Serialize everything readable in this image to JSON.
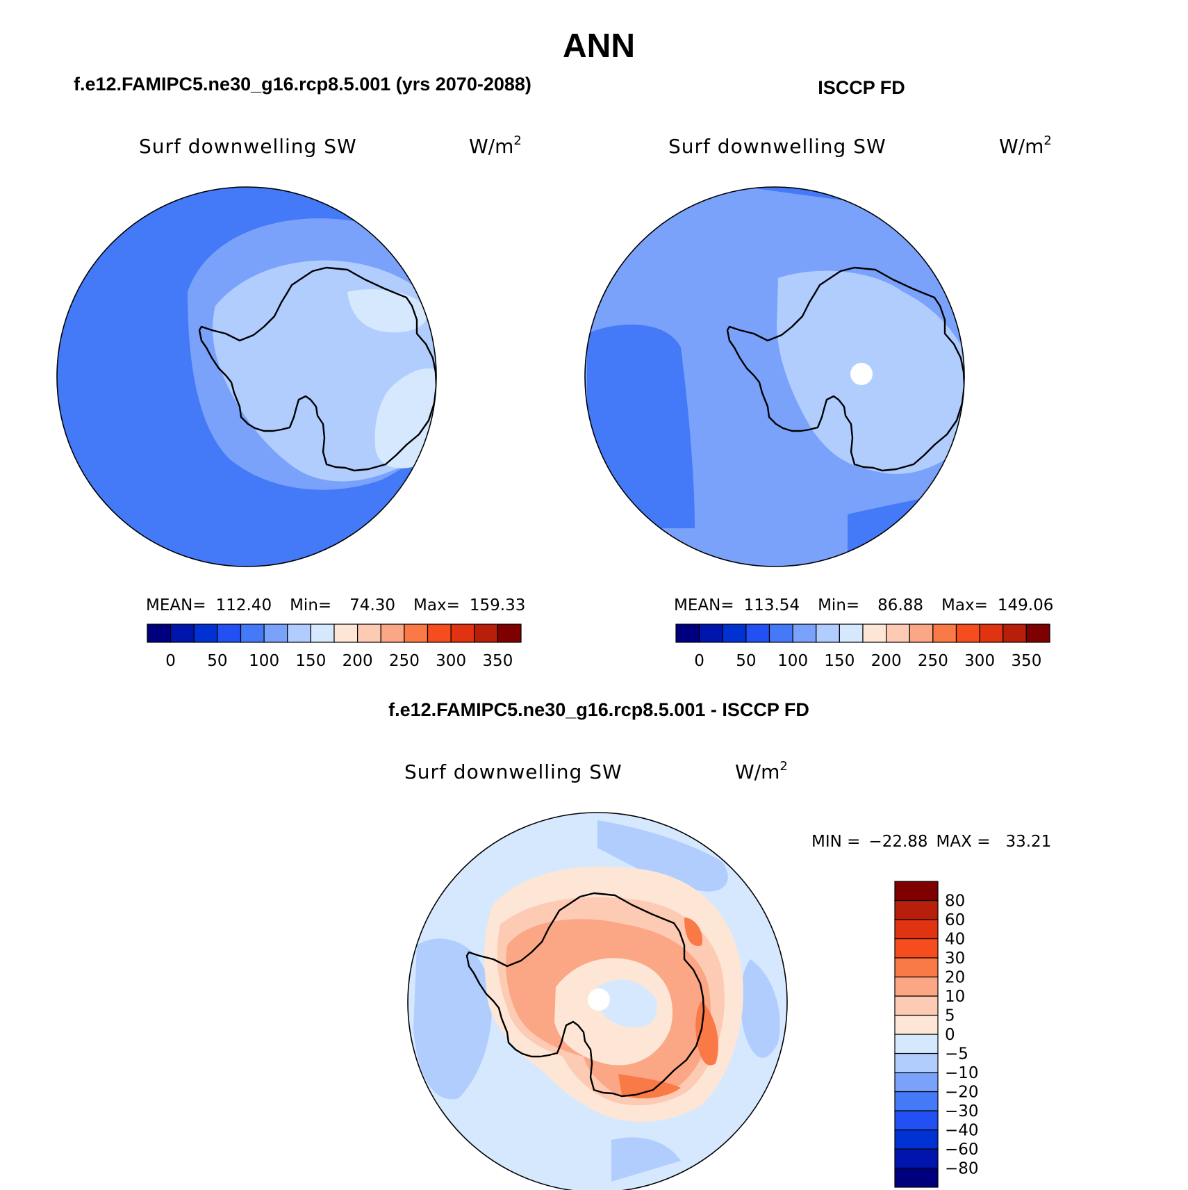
{
  "season": "ANN",
  "panels": [
    {
      "id": "model",
      "header": "f.e12.FAMIPC5.ne30_g16.rcp8.5.001 (yrs 2070-2088)",
      "variable": "Surf downwelling SW",
      "units_base": "W/m",
      "units_exp": "2",
      "stats": {
        "mean_label": "MEAN=",
        "mean": "112.40",
        "min_label": "Min=",
        "min": "74.30",
        "max_label": "Max=",
        "max": "159.33"
      }
    },
    {
      "id": "obs",
      "header": "ISCCP FD",
      "variable": "Surf downwelling SW",
      "units_base": "W/m",
      "units_exp": "2",
      "stats": {
        "mean_label": "MEAN=",
        "mean": "113.54",
        "min_label": "Min=",
        "min": "86.88",
        "max_label": "Max=",
        "max": "149.06"
      }
    },
    {
      "id": "diff",
      "header": "f.e12.FAMIPC5.ne30_g16.rcp8.5.001 - ISCCP FD",
      "variable": "Surf downwelling SW",
      "units_base": "W/m",
      "units_exp": "2",
      "stats": {
        "min_label": "MIN =",
        "min": "−22.88",
        "max_label": "MAX =",
        "max": "33.21"
      }
    }
  ],
  "colorbar_abs": {
    "colors": [
      "#00007f",
      "#0015ae",
      "#0031d2",
      "#2250f2",
      "#4479f7",
      "#7aa2fb",
      "#b0cdfe",
      "#d6e8fe",
      "#fde6d6",
      "#fdcbb4",
      "#fba685",
      "#fa7a47",
      "#f54d1e",
      "#df3311",
      "#b71f0a",
      "#7f0000"
    ],
    "tick_labels": [
      "0",
      "50",
      "100",
      "150",
      "200",
      "250",
      "300",
      "350"
    ]
  },
  "colorbar_diff": {
    "colors": [
      "#00007f",
      "#0015ae",
      "#0031d2",
      "#2250f2",
      "#4479f7",
      "#7aa2fb",
      "#b0cdfe",
      "#d6e8fe",
      "#fde6d6",
      "#fdcbb4",
      "#fba685",
      "#fa7a47",
      "#f54d1e",
      "#df3311",
      "#b71f0a",
      "#7f0000"
    ],
    "tick_labels": [
      "−80",
      "−60",
      "−40",
      "−30",
      "−20",
      "−10",
      "−5",
      "0",
      "5",
      "10",
      "20",
      "30",
      "40",
      "60",
      "80"
    ]
  },
  "map_layers": {
    "model": [
      "#4479f7",
      "#7aa2fb",
      "#b0cdfe",
      "#d6e8fe"
    ],
    "obs": [
      "#4479f7",
      "#7aa2fb",
      "#b0cdfe"
    ],
    "diff": [
      "#b0cdfe",
      "#d6e8fe",
      "#fde6d6",
      "#fdcbb4",
      "#fba685",
      "#fa7a47"
    ]
  }
}
